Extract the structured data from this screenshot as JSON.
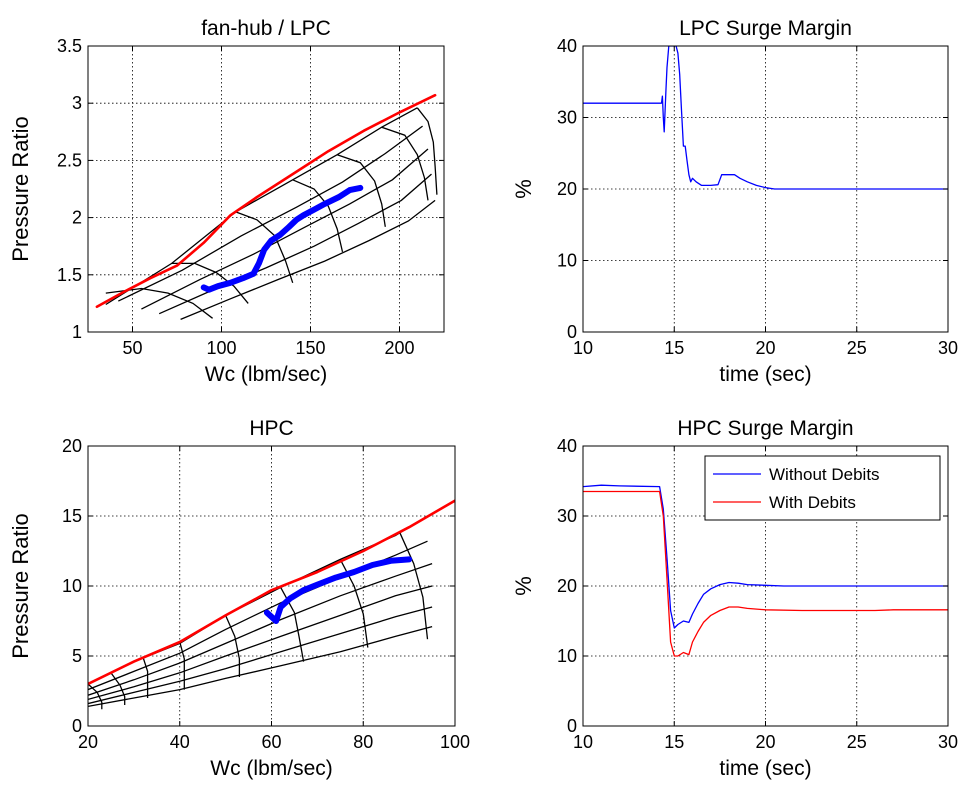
{
  "chart_data": [
    {
      "type": "line",
      "title": "fan-hub / LPC",
      "xlabel": "Wc (lbm/sec)",
      "ylabel": "Pressure Ratio",
      "xlim": [
        25,
        225
      ],
      "ylim": [
        1,
        3.5
      ],
      "xticks": [
        50,
        100,
        150,
        200
      ],
      "yticks": [
        1,
        1.5,
        2,
        2.5,
        3,
        3.5
      ],
      "yticklabels": [
        "1",
        "1.5",
        "2",
        "2.5",
        "3",
        "3.5"
      ],
      "grid": true,
      "map_speed_lines": [
        [
          [
            35,
            1.24
          ],
          [
            72,
            1.6
          ],
          [
            108,
            2.05
          ],
          [
            140,
            2.33
          ],
          [
            165,
            2.55
          ],
          [
            190,
            2.79
          ],
          [
            210,
            2.96
          ]
        ],
        [
          [
            42,
            1.27
          ],
          [
            78,
            1.54
          ],
          [
            111,
            1.84
          ],
          [
            142,
            2.09
          ],
          [
            168,
            2.31
          ],
          [
            192,
            2.56
          ],
          [
            213,
            2.8
          ]
        ],
        [
          [
            55,
            1.2
          ],
          [
            88,
            1.46
          ],
          [
            118,
            1.68
          ],
          [
            146,
            1.91
          ],
          [
            172,
            2.12
          ],
          [
            196,
            2.33
          ],
          [
            216,
            2.6
          ]
        ],
        [
          [
            65,
            1.16
          ],
          [
            97,
            1.38
          ],
          [
            125,
            1.56
          ],
          [
            152,
            1.75
          ],
          [
            177,
            1.95
          ],
          [
            201,
            2.15
          ],
          [
            218,
            2.38
          ]
        ],
        [
          [
            77,
            1.11
          ],
          [
            105,
            1.29
          ],
          [
            132,
            1.46
          ],
          [
            158,
            1.62
          ],
          [
            183,
            1.8
          ],
          [
            205,
            1.97
          ],
          [
            220,
            2.15
          ]
        ]
      ],
      "map_constant_lines": [
        [
          [
            35,
            1.34
          ],
          [
            55,
            1.38
          ],
          [
            70,
            1.34
          ],
          [
            84,
            1.25
          ],
          [
            95,
            1.12
          ]
        ],
        [
          [
            72,
            1.6
          ],
          [
            85,
            1.6
          ],
          [
            97,
            1.52
          ],
          [
            107,
            1.4
          ],
          [
            115,
            1.25
          ]
        ],
        [
          [
            108,
            2.05
          ],
          [
            120,
            1.98
          ],
          [
            130,
            1.84
          ],
          [
            136,
            1.62
          ],
          [
            140,
            1.43
          ]
        ],
        [
          [
            140,
            2.33
          ],
          [
            152,
            2.25
          ],
          [
            160,
            2.1
          ],
          [
            165,
            1.9
          ],
          [
            168,
            1.7
          ]
        ],
        [
          [
            165,
            2.55
          ],
          [
            178,
            2.48
          ],
          [
            186,
            2.32
          ],
          [
            190,
            2.12
          ],
          [
            192,
            1.92
          ]
        ],
        [
          [
            190,
            2.79
          ],
          [
            203,
            2.72
          ],
          [
            210,
            2.55
          ],
          [
            214,
            2.35
          ],
          [
            216,
            2.15
          ]
        ],
        [
          [
            210,
            2.96
          ],
          [
            216,
            2.84
          ],
          [
            219,
            2.66
          ],
          [
            220,
            2.45
          ],
          [
            221,
            2.2
          ]
        ]
      ],
      "series": [
        {
          "color": "#ff0000",
          "x": [
            30,
            45,
            60,
            75,
            90,
            105,
            120,
            140,
            160,
            180,
            200,
            220
          ],
          "y": [
            1.22,
            1.35,
            1.47,
            1.58,
            1.78,
            2.02,
            2.18,
            2.38,
            2.58,
            2.76,
            2.92,
            3.07
          ]
        },
        {
          "color": "#0000ff",
          "x": [
            90,
            93,
            98,
            105,
            112,
            118,
            121,
            124,
            128,
            133,
            138,
            142,
            146,
            152,
            158,
            166,
            172,
            178
          ],
          "y": [
            1.39,
            1.37,
            1.4,
            1.43,
            1.47,
            1.51,
            1.6,
            1.72,
            1.8,
            1.85,
            1.92,
            1.98,
            2.02,
            2.07,
            2.12,
            2.18,
            2.24,
            2.26
          ]
        }
      ]
    },
    {
      "type": "line",
      "title": "LPC Surge Margin",
      "xlabel": "time (sec)",
      "ylabel": "%",
      "xlim": [
        10,
        30
      ],
      "ylim": [
        0,
        40
      ],
      "xticks": [
        10,
        15,
        20,
        25,
        30
      ],
      "yticks": [
        0,
        10,
        20,
        30,
        40
      ],
      "grid": true,
      "series": [
        {
          "color": "#0000ff",
          "x": [
            10,
            14.3,
            14.35,
            14.4,
            14.45,
            14.5,
            14.55,
            14.6,
            14.7,
            14.8,
            14.9,
            15.0,
            15.1,
            15.2,
            15.3,
            15.4,
            15.5,
            15.6,
            15.7,
            15.8,
            15.9,
            16.0,
            16.2,
            16.5,
            17.0,
            17.4,
            17.6,
            18.0,
            18.3,
            18.6,
            19.0,
            19.5,
            20.0,
            20.5,
            30
          ],
          "y": [
            32,
            32,
            33,
            30,
            28,
            31,
            34,
            37,
            40,
            40,
            40,
            40,
            40,
            39,
            36,
            31,
            26,
            26,
            24,
            22,
            21,
            21.5,
            21,
            20.5,
            20.5,
            20.6,
            22,
            22,
            22,
            21.5,
            21,
            20.5,
            20.2,
            20,
            20
          ]
        }
      ]
    },
    {
      "type": "line",
      "title": "HPC",
      "xlabel": "Wc (lbm/sec)",
      "ylabel": "Pressure Ratio",
      "xlim": [
        20,
        100
      ],
      "ylim": [
        0,
        20
      ],
      "xticks": [
        20,
        40,
        60,
        80,
        100
      ],
      "yticks": [
        0,
        5,
        10,
        15,
        20
      ],
      "grid": true,
      "map_speed_lines": [
        [
          [
            20,
            3.0
          ],
          [
            30,
            4.6
          ],
          [
            40,
            5.9
          ],
          [
            50,
            7.9
          ],
          [
            62,
            9.9
          ],
          [
            75,
            11.9
          ],
          [
            87,
            13.6
          ],
          [
            94,
            15.0
          ]
        ],
        [
          [
            20,
            2.6
          ],
          [
            30,
            3.9
          ],
          [
            40,
            5.2
          ],
          [
            50,
            6.9
          ],
          [
            62,
            8.8
          ],
          [
            75,
            10.6
          ],
          [
            87,
            12.2
          ],
          [
            94,
            13.2
          ]
        ],
        [
          [
            20,
            2.2
          ],
          [
            30,
            3.3
          ],
          [
            40,
            4.5
          ],
          [
            50,
            5.9
          ],
          [
            62,
            7.6
          ],
          [
            75,
            9.3
          ],
          [
            87,
            10.7
          ],
          [
            95,
            11.6
          ]
        ],
        [
          [
            20,
            1.9
          ],
          [
            30,
            2.8
          ],
          [
            40,
            3.8
          ],
          [
            50,
            5.0
          ],
          [
            62,
            6.4
          ],
          [
            75,
            7.9
          ],
          [
            87,
            9.3
          ],
          [
            95,
            10.0
          ]
        ],
        [
          [
            20,
            1.6
          ],
          [
            30,
            2.4
          ],
          [
            40,
            3.2
          ],
          [
            50,
            4.1
          ],
          [
            62,
            5.3
          ],
          [
            75,
            6.6
          ],
          [
            87,
            7.8
          ],
          [
            95,
            8.5
          ]
        ],
        [
          [
            20,
            1.4
          ],
          [
            30,
            2.0
          ],
          [
            40,
            2.6
          ],
          [
            50,
            3.4
          ],
          [
            62,
            4.3
          ],
          [
            75,
            5.3
          ],
          [
            87,
            6.4
          ],
          [
            95,
            7.1
          ]
        ]
      ],
      "map_constant_lines": [
        [
          [
            20,
            3.0
          ],
          [
            22,
            2.4
          ],
          [
            23,
            1.7
          ],
          [
            23,
            1.2
          ]
        ],
        [
          [
            25,
            3.8
          ],
          [
            27,
            2.9
          ],
          [
            28,
            2.1
          ],
          [
            28,
            1.5
          ]
        ],
        [
          [
            32,
            4.9
          ],
          [
            33,
            3.9
          ],
          [
            33,
            2.9
          ],
          [
            33,
            2.0
          ]
        ],
        [
          [
            40,
            6.0
          ],
          [
            41,
            4.8
          ],
          [
            41,
            3.6
          ],
          [
            41,
            2.6
          ]
        ],
        [
          [
            50,
            7.9
          ],
          [
            52,
            6.4
          ],
          [
            53,
            4.8
          ],
          [
            53,
            3.5
          ]
        ],
        [
          [
            62,
            9.9
          ],
          [
            65,
            8.1
          ],
          [
            66,
            6.4
          ],
          [
            67,
            4.6
          ]
        ],
        [
          [
            75,
            11.9
          ],
          [
            78,
            10.0
          ],
          [
            80,
            8.0
          ],
          [
            81,
            5.6
          ]
        ],
        [
          [
            88,
            13.8
          ],
          [
            91,
            11.6
          ],
          [
            93,
            9.2
          ],
          [
            94,
            6.2
          ]
        ]
      ],
      "series": [
        {
          "color": "#ff0000",
          "x": [
            20,
            30,
            40,
            50,
            60,
            70,
            80,
            90,
            100
          ],
          "y": [
            3.0,
            4.6,
            6.0,
            7.9,
            9.7,
            11.0,
            12.5,
            14.2,
            16.1
          ]
        },
        {
          "color": "#0000ff",
          "x": [
            59,
            61,
            61.5,
            62,
            64,
            67,
            70,
            74,
            78,
            82,
            86,
            90
          ],
          "y": [
            8.1,
            7.5,
            8.0,
            8.5,
            9.1,
            9.7,
            10.1,
            10.6,
            11.0,
            11.5,
            11.8,
            11.9
          ]
        }
      ]
    },
    {
      "type": "line",
      "title": "HPC Surge Margin",
      "xlabel": "time (sec)",
      "ylabel": "%",
      "xlim": [
        10,
        30
      ],
      "ylim": [
        0,
        40
      ],
      "xticks": [
        10,
        15,
        20,
        25,
        30
      ],
      "yticks": [
        0,
        10,
        20,
        30,
        40
      ],
      "grid": true,
      "legend": {
        "position": "top-right"
      },
      "series": [
        {
          "name": "Without Debits",
          "color": "#0000ff",
          "x": [
            10,
            11,
            12,
            14.2,
            14.4,
            14.6,
            14.8,
            15.0,
            15.2,
            15.5,
            15.8,
            16.0,
            16.3,
            16.6,
            17.0,
            17.5,
            18.0,
            18.5,
            19.0,
            20,
            21,
            30
          ],
          "y": [
            34.2,
            34.4,
            34.3,
            34.2,
            31,
            24,
            16.5,
            14,
            14.5,
            15,
            14.8,
            16,
            17.5,
            18.8,
            19.6,
            20.2,
            20.5,
            20.4,
            20.2,
            20.1,
            20,
            20
          ]
        },
        {
          "name": "With Debits",
          "color": "#ff0000",
          "x": [
            10,
            14.2,
            14.4,
            14.6,
            14.8,
            15.0,
            15.2,
            15.5,
            15.8,
            16.0,
            16.3,
            16.6,
            17.0,
            17.5,
            18.0,
            18.5,
            19.0,
            20,
            22,
            26,
            27,
            30
          ],
          "y": [
            33.5,
            33.5,
            30,
            21,
            12,
            10,
            10,
            10.5,
            10.2,
            12,
            13.5,
            14.8,
            15.8,
            16.5,
            17,
            17,
            16.8,
            16.6,
            16.5,
            16.5,
            16.6,
            16.6
          ]
        }
      ]
    }
  ]
}
